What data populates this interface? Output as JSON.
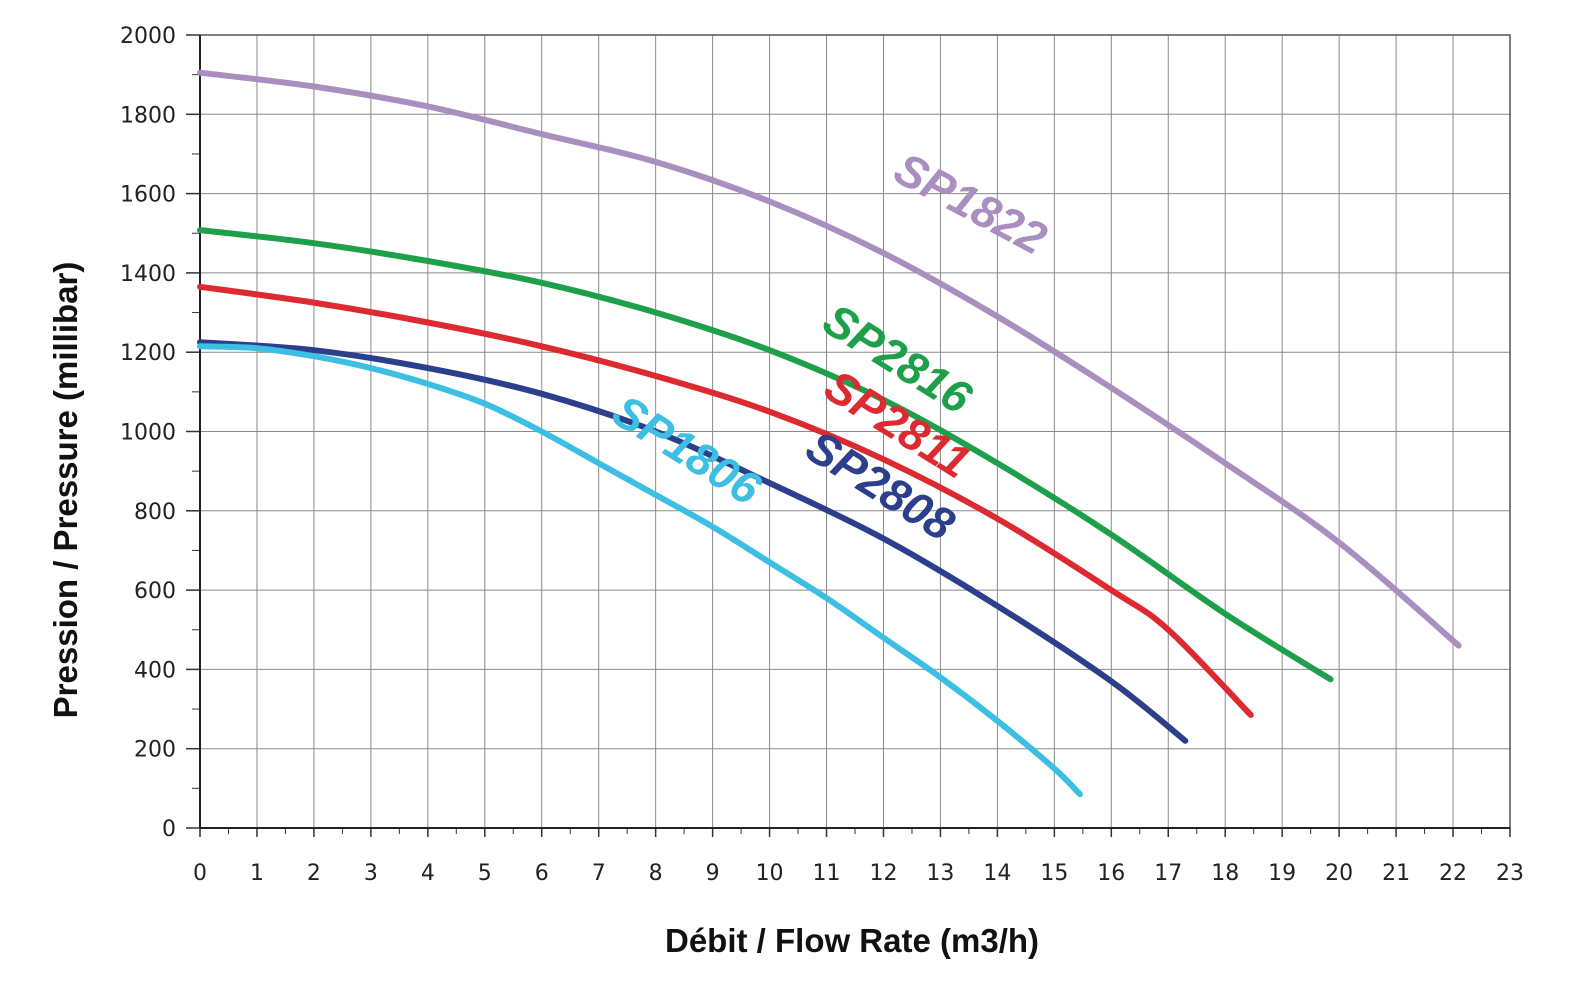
{
  "chart_data": {
    "type": "line",
    "xlabel": "Débit / Flow Rate (m3/h)",
    "ylabel": "Pression / Pressure (millibar)",
    "xlim": [
      0,
      23
    ],
    "ylim": [
      0,
      2000
    ],
    "x_ticks": [
      "0",
      "1",
      "2",
      "3",
      "4",
      "5",
      "6",
      "7",
      "8",
      "9",
      "10",
      "11",
      "12",
      "13",
      "14",
      "15",
      "16",
      "17",
      "18",
      "19",
      "20",
      "21",
      "22",
      "23"
    ],
    "y_ticks": [
      "0",
      "200",
      "400",
      "600",
      "800",
      "1000",
      "1200",
      "1400",
      "1600",
      "1800",
      "2000"
    ],
    "grid": true,
    "legend": "inline labels on curves",
    "series": [
      {
        "name": "SP1822",
        "color": "#a88fc0",
        "x": [
          0,
          2,
          4,
          6,
          8,
          10,
          12,
          14,
          16,
          18,
          20,
          22.1
        ],
        "y": [
          1905,
          1870,
          1820,
          1750,
          1680,
          1580,
          1450,
          1290,
          1110,
          920,
          720,
          460
        ]
      },
      {
        "name": "SP2816",
        "color": "#1ea04a",
        "x": [
          0,
          2,
          4,
          6,
          8,
          10,
          12,
          14,
          16,
          18,
          19.85
        ],
        "y": [
          1508,
          1475,
          1430,
          1375,
          1300,
          1205,
          1080,
          920,
          740,
          540,
          375
        ]
      },
      {
        "name": "SP2811",
        "color": "#dc2a30",
        "x": [
          0,
          2,
          4,
          6,
          8,
          10,
          12,
          14,
          16,
          17,
          18.45
        ],
        "y": [
          1365,
          1325,
          1275,
          1215,
          1140,
          1050,
          930,
          780,
          600,
          500,
          285
        ]
      },
      {
        "name": "SP2808",
        "color": "#2c3f8c",
        "x": [
          0,
          2,
          4,
          6,
          8,
          10,
          12,
          14,
          16,
          17.3
        ],
        "y": [
          1225,
          1205,
          1160,
          1095,
          1000,
          870,
          730,
          560,
          370,
          220
        ]
      },
      {
        "name": "SP1806",
        "color": "#3cbfe3",
        "x": [
          0,
          1,
          2,
          3,
          4,
          5,
          6,
          7,
          8,
          9,
          10,
          11,
          12,
          13,
          14,
          15,
          15.45
        ],
        "y": [
          1215,
          1210,
          1190,
          1160,
          1120,
          1070,
          1000,
          920,
          840,
          760,
          670,
          580,
          480,
          380,
          270,
          150,
          85
        ]
      }
    ]
  }
}
